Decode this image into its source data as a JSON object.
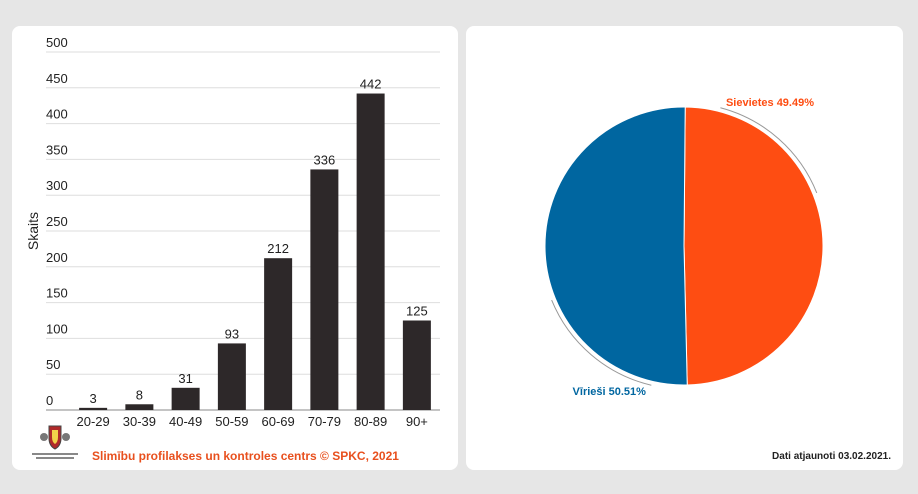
{
  "chart_data": [
    {
      "type": "bar",
      "categories": [
        "20-29",
        "30-39",
        "40-49",
        "50-59",
        "60-69",
        "70-79",
        "80-89",
        "90+"
      ],
      "values": [
        3,
        8,
        31,
        93,
        212,
        336,
        442,
        125
      ],
      "ylabel": "Skaits",
      "ylim": [
        0,
        500
      ],
      "yticks": [
        0,
        50,
        100,
        150,
        200,
        250,
        300,
        350,
        400,
        450,
        500
      ],
      "grid": true,
      "bar_color": "#2d2829"
    },
    {
      "type": "pie",
      "slices": [
        {
          "name": "Sievietes",
          "value": 49.49,
          "label": "Sievietes 49.49%",
          "color": "#fe4d12"
        },
        {
          "name": "Vīrieši",
          "value": 50.51,
          "label": "Vīrieši 50.51%",
          "color": "#0066a0"
        }
      ]
    }
  ],
  "footer": {
    "credit": "Slimību profilakses un kontroles centrs © SPKC, 2021",
    "updated": "Dati atjaunoti 03.02.2021."
  }
}
